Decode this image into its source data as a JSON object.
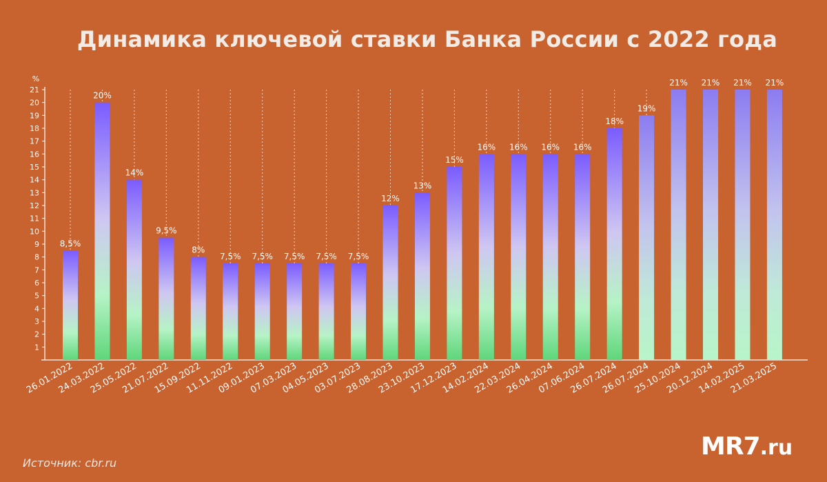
{
  "chart_data": {
    "type": "bar",
    "title": "Динамика ключевой ставки Банка России с 2022 года",
    "ylabel": "%",
    "ylim": [
      0,
      21
    ],
    "yticks": [
      1,
      2,
      3,
      4,
      5,
      6,
      7,
      8,
      9,
      10,
      11,
      12,
      13,
      14,
      15,
      16,
      17,
      18,
      19,
      20,
      21
    ],
    "grid": "dashed vertical lines from bar tops to top",
    "categories": [
      "26.01.2022",
      "24.03.2022",
      "25.05.2022",
      "21.07.2022",
      "15.09.2022",
      "11.11.2022",
      "09.01.2023",
      "07.03.2023",
      "04.05.2023",
      "03.07.2023",
      "28.08.2023",
      "23.10.2023",
      "17.12.2023",
      "14.02.2024",
      "22.03.2024",
      "26.04.2024",
      "07.06.2024",
      "26.07.2024",
      "26.07.2024",
      "25.10.2024",
      "20.12.2024",
      "14.02.2025",
      "21.03.2025"
    ],
    "values": [
      8.5,
      20,
      14,
      9.5,
      8,
      7.5,
      7.5,
      7.5,
      7.5,
      7.5,
      12,
      13,
      15,
      16,
      16,
      16,
      16,
      18,
      19,
      21,
      21,
      21,
      21
    ],
    "data_labels": [
      "8,5%",
      "20%",
      "14%",
      "9,5%",
      "8%",
      "7,5%",
      "7,5%",
      "7,5%",
      "7,5%",
      "7,5%",
      "12%",
      "13%",
      "15%",
      "16%",
      "16%",
      "16%",
      "16%",
      "18%",
      "19%",
      "21%",
      "21%",
      "21%",
      "21%"
    ],
    "colors": {
      "background": "#c8622f",
      "bar_top": "#7a5cff",
      "bar_mid": "#cfc6f2",
      "bar_bottom": "#5fd67a",
      "bar_bottom_late": "#b8f2c6"
    }
  },
  "source": "Источник: cbr.ru",
  "logo": {
    "main": "MR7",
    "suffix": ".ru"
  }
}
